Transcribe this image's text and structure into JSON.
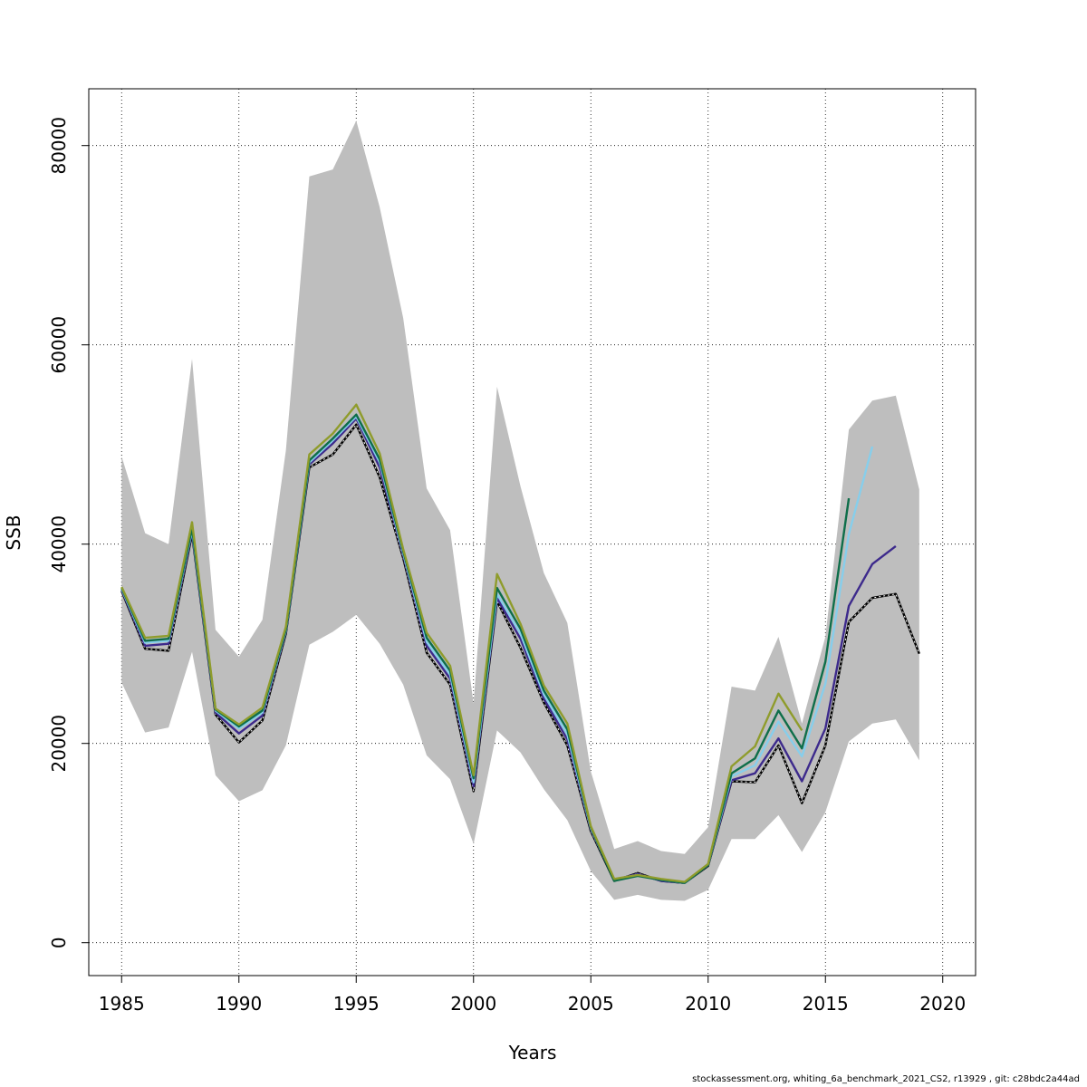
{
  "chart_data": {
    "type": "line",
    "title": "",
    "xlabel": "Years",
    "ylabel": "SSB",
    "xlim": [
      1983.6,
      2021.4
    ],
    "ylim": [
      -3300,
      85700
    ],
    "x_ticks": [
      1985,
      1990,
      1995,
      2000,
      2005,
      2010,
      2015,
      2020
    ],
    "y_ticks": [
      0,
      20000,
      40000,
      60000,
      80000
    ],
    "grid": true,
    "legend": "none",
    "confidence_band": {
      "color": "#bebebe",
      "x": [
        1985,
        1986,
        1987,
        1988,
        1989,
        1990,
        1991,
        1992,
        1993,
        1994,
        1995,
        1996,
        1997,
        1998,
        1999,
        2000,
        2001,
        2002,
        2003,
        2004,
        2005,
        2006,
        2007,
        2008,
        2009,
        2010,
        2011,
        2012,
        2013,
        2014,
        2015,
        2016,
        2017,
        2018,
        2019
      ],
      "upper": [
        48800,
        41100,
        40000,
        58600,
        31400,
        28700,
        32400,
        49400,
        76900,
        77600,
        82500,
        73800,
        62700,
        45600,
        41400,
        24000,
        55800,
        45800,
        37100,
        32100,
        17200,
        9400,
        10200,
        9200,
        8900,
        11600,
        25700,
        25300,
        30700,
        22000,
        30700,
        51500,
        54400,
        54900,
        45500
      ],
      "lower": [
        26100,
        21100,
        21600,
        29200,
        16800,
        14200,
        15300,
        19800,
        29900,
        31200,
        32900,
        30000,
        25900,
        18800,
        16400,
        9900,
        21300,
        19100,
        15400,
        12300,
        7200,
        4300,
        4800,
        4300,
        4200,
        5300,
        10400,
        10400,
        12800,
        9100,
        13100,
        20200,
        22000,
        22400,
        18300
      ]
    },
    "series": [
      {
        "color": "#000000",
        "x": [
          1985,
          1986,
          1987,
          1988,
          1989,
          1990,
          1991,
          1992,
          1993,
          1994,
          1995,
          1996,
          1997,
          1998,
          1999,
          2000,
          2001,
          2002,
          2003,
          2004,
          2005,
          2006,
          2007,
          2008,
          2009,
          2010,
          2011,
          2012,
          2013,
          2014,
          2015,
          2016,
          2017,
          2018,
          2019
        ],
        "values": [
          35300,
          29500,
          29300,
          41000,
          22900,
          20100,
          22300,
          31000,
          47700,
          49000,
          52000,
          46700,
          38600,
          29100,
          25900,
          15200,
          34300,
          29600,
          24100,
          19800,
          11200,
          6200,
          7000,
          6200,
          6000,
          7700,
          16200,
          16100,
          19800,
          14000,
          19800,
          32200,
          34600,
          35000,
          29000
        ]
      },
      {
        "color": "#3d2a8c",
        "x": [
          1985,
          1986,
          1987,
          1988,
          1989,
          1990,
          1991,
          1992,
          1993,
          1994,
          1995,
          1996,
          1997,
          1998,
          1999,
          2000,
          2001,
          2002,
          2003,
          2004,
          2005,
          2006,
          2007,
          2008,
          2009,
          2010,
          2011,
          2012,
          2013,
          2014,
          2015,
          2016,
          2017,
          2018
        ],
        "values": [
          35400,
          29800,
          30000,
          41200,
          23100,
          21000,
          22800,
          31200,
          48000,
          50100,
          52600,
          47700,
          38900,
          29800,
          26500,
          15700,
          34600,
          30500,
          24500,
          20400,
          11400,
          6300,
          6900,
          6200,
          6000,
          7800,
          16300,
          17000,
          20500,
          16200,
          21500,
          33800,
          38000,
          39800
        ]
      },
      {
        "color": "#87ceeb",
        "x": [
          1985,
          1986,
          1987,
          1988,
          1989,
          1990,
          1991,
          1992,
          1993,
          1994,
          1995,
          1996,
          1997,
          1998,
          1999,
          2000,
          2001,
          2002,
          2003,
          2004,
          2005,
          2006,
          2007,
          2008,
          2009,
          2010,
          2011,
          2012,
          2013,
          2014,
          2015,
          2016,
          2017
        ],
        "values": [
          35500,
          30100,
          30300,
          41400,
          23300,
          21500,
          23100,
          31300,
          48200,
          50400,
          52800,
          48200,
          39100,
          30200,
          26900,
          16100,
          35000,
          31000,
          24900,
          20900,
          11500,
          6300,
          6800,
          6300,
          6000,
          7800,
          16700,
          17800,
          22200,
          18700,
          26000,
          41000,
          49800
        ]
      },
      {
        "color": "#0e6e4a",
        "x": [
          1985,
          1986,
          1987,
          1988,
          1989,
          1990,
          1991,
          1992,
          1993,
          1994,
          1995,
          1996,
          1997,
          1998,
          1999,
          2000,
          2001,
          2002,
          2003,
          2004,
          2005,
          2006,
          2007,
          2008,
          2009,
          2010,
          2011,
          2012,
          2013,
          2014,
          2015,
          2016
        ],
        "values": [
          35600,
          30300,
          30500,
          41600,
          23400,
          21700,
          23300,
          31400,
          48400,
          50600,
          53000,
          48500,
          39300,
          30600,
          27300,
          16500,
          35600,
          31500,
          25300,
          21400,
          11600,
          6200,
          6700,
          6300,
          6000,
          7800,
          17000,
          18500,
          23300,
          19500,
          28200,
          44600
        ]
      },
      {
        "color": "#8f9c2c",
        "x": [
          1985,
          1986,
          1987,
          1988,
          1989,
          1990,
          1991,
          1992,
          1993,
          1994,
          1995,
          1996,
          1997,
          1998,
          1999,
          2000,
          2001,
          2002,
          2003,
          2004,
          2005,
          2006,
          2007,
          2008,
          2009,
          2010,
          2011,
          2012,
          2013,
          2014
        ],
        "values": [
          35700,
          30600,
          30800,
          42200,
          23500,
          21900,
          23600,
          31700,
          49000,
          51100,
          54000,
          49100,
          39500,
          31100,
          27800,
          16800,
          37000,
          32000,
          25800,
          22000,
          11700,
          6400,
          6800,
          6400,
          6100,
          7900,
          17700,
          19700,
          25000,
          21300
        ]
      }
    ]
  },
  "footer_text": "stockassessment.org, whiting_6a_benchmark_2021_CS2, r13929 , git: c28bdc2a44ad"
}
